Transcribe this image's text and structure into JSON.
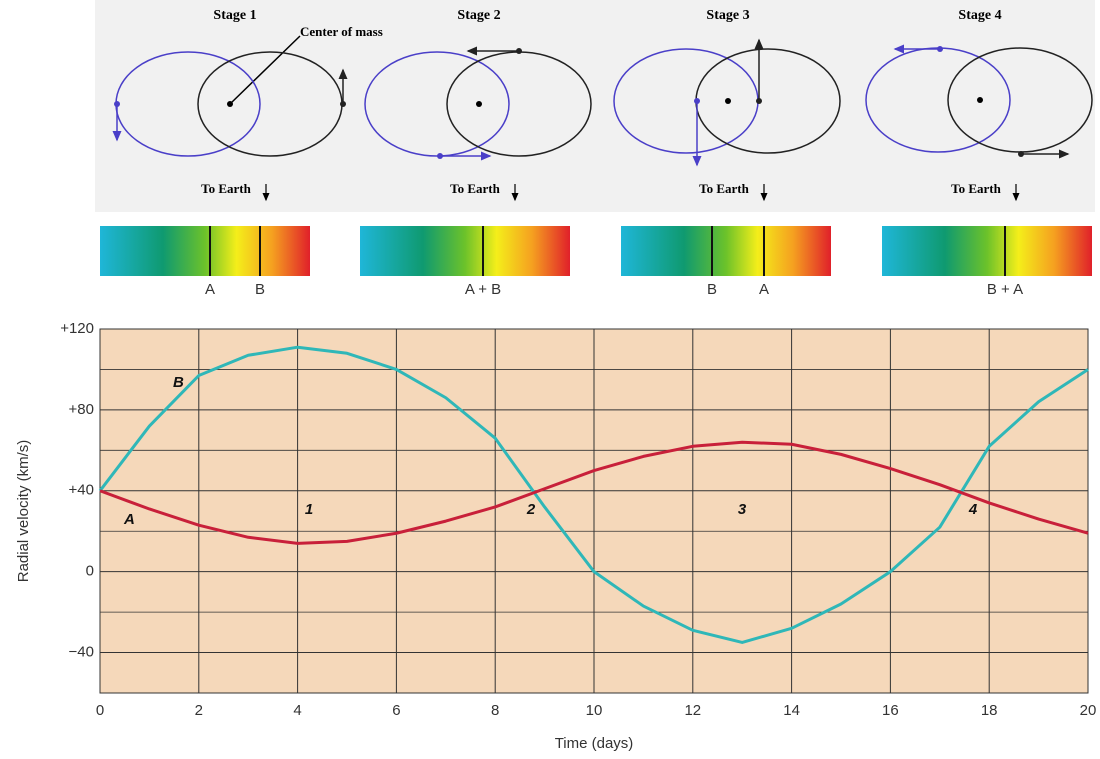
{
  "diagram": {
    "annotation": "Center of mass",
    "stages": [
      {
        "title": "Stage 1",
        "to_earth": "To Earth",
        "spectrum_labels": [
          "A",
          "B"
        ]
      },
      {
        "title": "Stage 2",
        "to_earth": "To Earth",
        "spectrum_labels": [
          "A + B"
        ]
      },
      {
        "title": "Stage 3",
        "to_earth": "To Earth",
        "spectrum_labels": [
          "B",
          "A"
        ]
      },
      {
        "title": "Stage 4",
        "to_earth": "To Earth",
        "spectrum_labels": [
          "B + A"
        ]
      }
    ]
  },
  "chart_data": {
    "type": "line",
    "x_label": "Time (days)",
    "y_label": "Radial velocity (km/s)",
    "x": [
      0,
      1,
      2,
      3,
      4,
      5,
      6,
      7,
      8,
      9,
      10,
      11,
      12,
      13,
      14,
      15,
      16,
      17,
      18,
      19,
      20
    ],
    "series": [
      {
        "name": "B",
        "color": "#2fb7b8",
        "values": [
          40,
          72,
          97,
          107,
          111,
          108,
          100,
          86,
          66,
          32,
          0,
          -17,
          -29,
          -35,
          -28,
          -16,
          0,
          22,
          62,
          84,
          100
        ]
      },
      {
        "name": "A",
        "color": "#c8203a",
        "values": [
          40,
          31,
          23,
          17,
          14,
          15,
          19,
          25,
          32,
          41,
          50,
          57,
          62,
          64,
          63,
          58,
          51,
          43,
          34,
          26,
          19
        ]
      }
    ],
    "annotations": [
      "1",
      "2",
      "3",
      "4"
    ],
    "xlim": [
      0,
      20
    ],
    "ylim": [
      -60,
      120
    ],
    "xticks": [
      0,
      2,
      4,
      6,
      8,
      10,
      12,
      14,
      16,
      18,
      20
    ],
    "yticks": [
      {
        "value": 120,
        "label": "+120"
      },
      {
        "value": 80,
        "label": "+80"
      },
      {
        "value": 40,
        "label": "+40"
      },
      0,
      {
        "value": -40,
        "label": "−40"
      }
    ],
    "minor_yticks": [
      100,
      60,
      20,
      -20
    ],
    "grid": true
  }
}
